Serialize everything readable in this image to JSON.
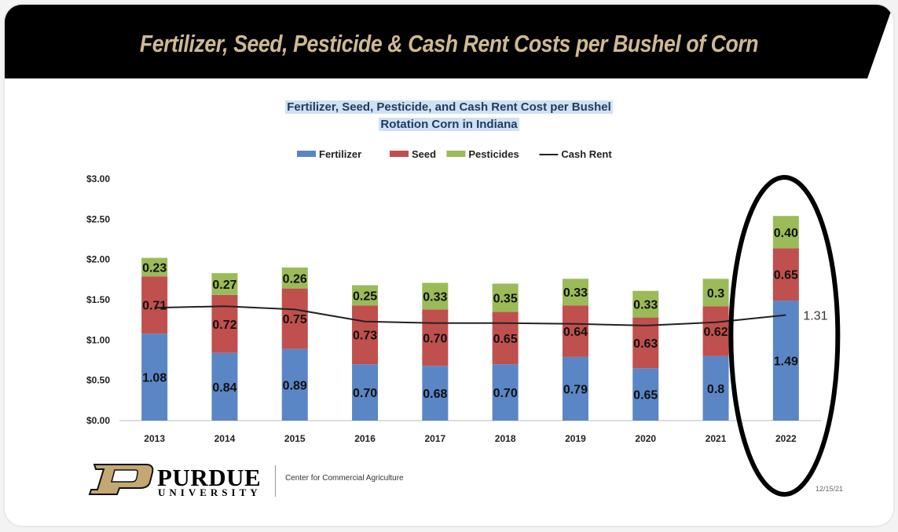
{
  "banner": {
    "title": "Fertilizer, Seed, Pesticide & Cash Rent Costs per Bushel of Corn"
  },
  "chart_data": {
    "type": "bar",
    "stacked": true,
    "title_line1": "Fertilizer, Seed, Pesticide, and Cash Rent Cost per Bushel",
    "title_line2": "Rotation Corn in Indiana",
    "categories": [
      "2013",
      "2014",
      "2015",
      "2016",
      "2017",
      "2018",
      "2019",
      "2020",
      "2021",
      "2022"
    ],
    "series": [
      {
        "name": "Fertilizer",
        "color": "#5b86c5",
        "values": [
          1.08,
          0.84,
          0.89,
          0.7,
          0.68,
          0.7,
          0.79,
          0.65,
          0.8,
          1.49
        ]
      },
      {
        "name": "Seed",
        "color": "#c0504d",
        "values": [
          0.71,
          0.72,
          0.75,
          0.73,
          0.7,
          0.65,
          0.64,
          0.63,
          0.62,
          0.65
        ]
      },
      {
        "name": "Pesticides",
        "color": "#9bbb59",
        "values": [
          0.23,
          0.27,
          0.26,
          0.25,
          0.33,
          0.35,
          0.33,
          0.33,
          0.34,
          0.4
        ]
      }
    ],
    "line_series": {
      "name": "Cash Rent",
      "color": "#222222",
      "values": [
        1.4,
        1.42,
        1.38,
        1.23,
        1.21,
        1.21,
        1.2,
        1.18,
        1.22,
        1.31
      ]
    },
    "data_labels": {
      "Fertilizer": [
        "1.08",
        "0.84",
        "0.89",
        "0.70",
        "0.68",
        "0.70",
        "0.79",
        "0.65",
        "0.8",
        "1.49"
      ],
      "Seed": [
        "0.71",
        "0.72",
        "0.75",
        "0.73",
        "0.70",
        "0.65",
        "0.64",
        "0.63",
        "0.62",
        "0.65"
      ],
      "Pesticides": [
        "0.23",
        "0.27",
        "0.26",
        "0.25",
        "0.33",
        "0.35",
        "0.33",
        "0.33",
        "0.3",
        "0.40"
      ],
      "Cash Rent": [
        "",
        "",
        "",
        "",
        "",
        "",
        "",
        "",
        "",
        "1.31"
      ]
    },
    "yticks": [
      "$0.00",
      "$0.50",
      "$1.00",
      "$1.50",
      "$2.00",
      "$2.50",
      "$3.00"
    ],
    "ylim": [
      0,
      3.0
    ],
    "legend": [
      "Fertilizer",
      "Seed",
      "Pesticides",
      "Cash Rent"
    ],
    "legend_position": "top",
    "grid": false,
    "highlight": "2022"
  },
  "footer": {
    "org_name": "PURDUE",
    "org_sub": "UNIVERSITY",
    "center_name": "Center for Commercial Agriculture",
    "date": "12/15/21"
  },
  "colors": {
    "banner_bg": "#000000",
    "banner_text": "#cfb991",
    "purdue_gold": "#c4a773"
  }
}
